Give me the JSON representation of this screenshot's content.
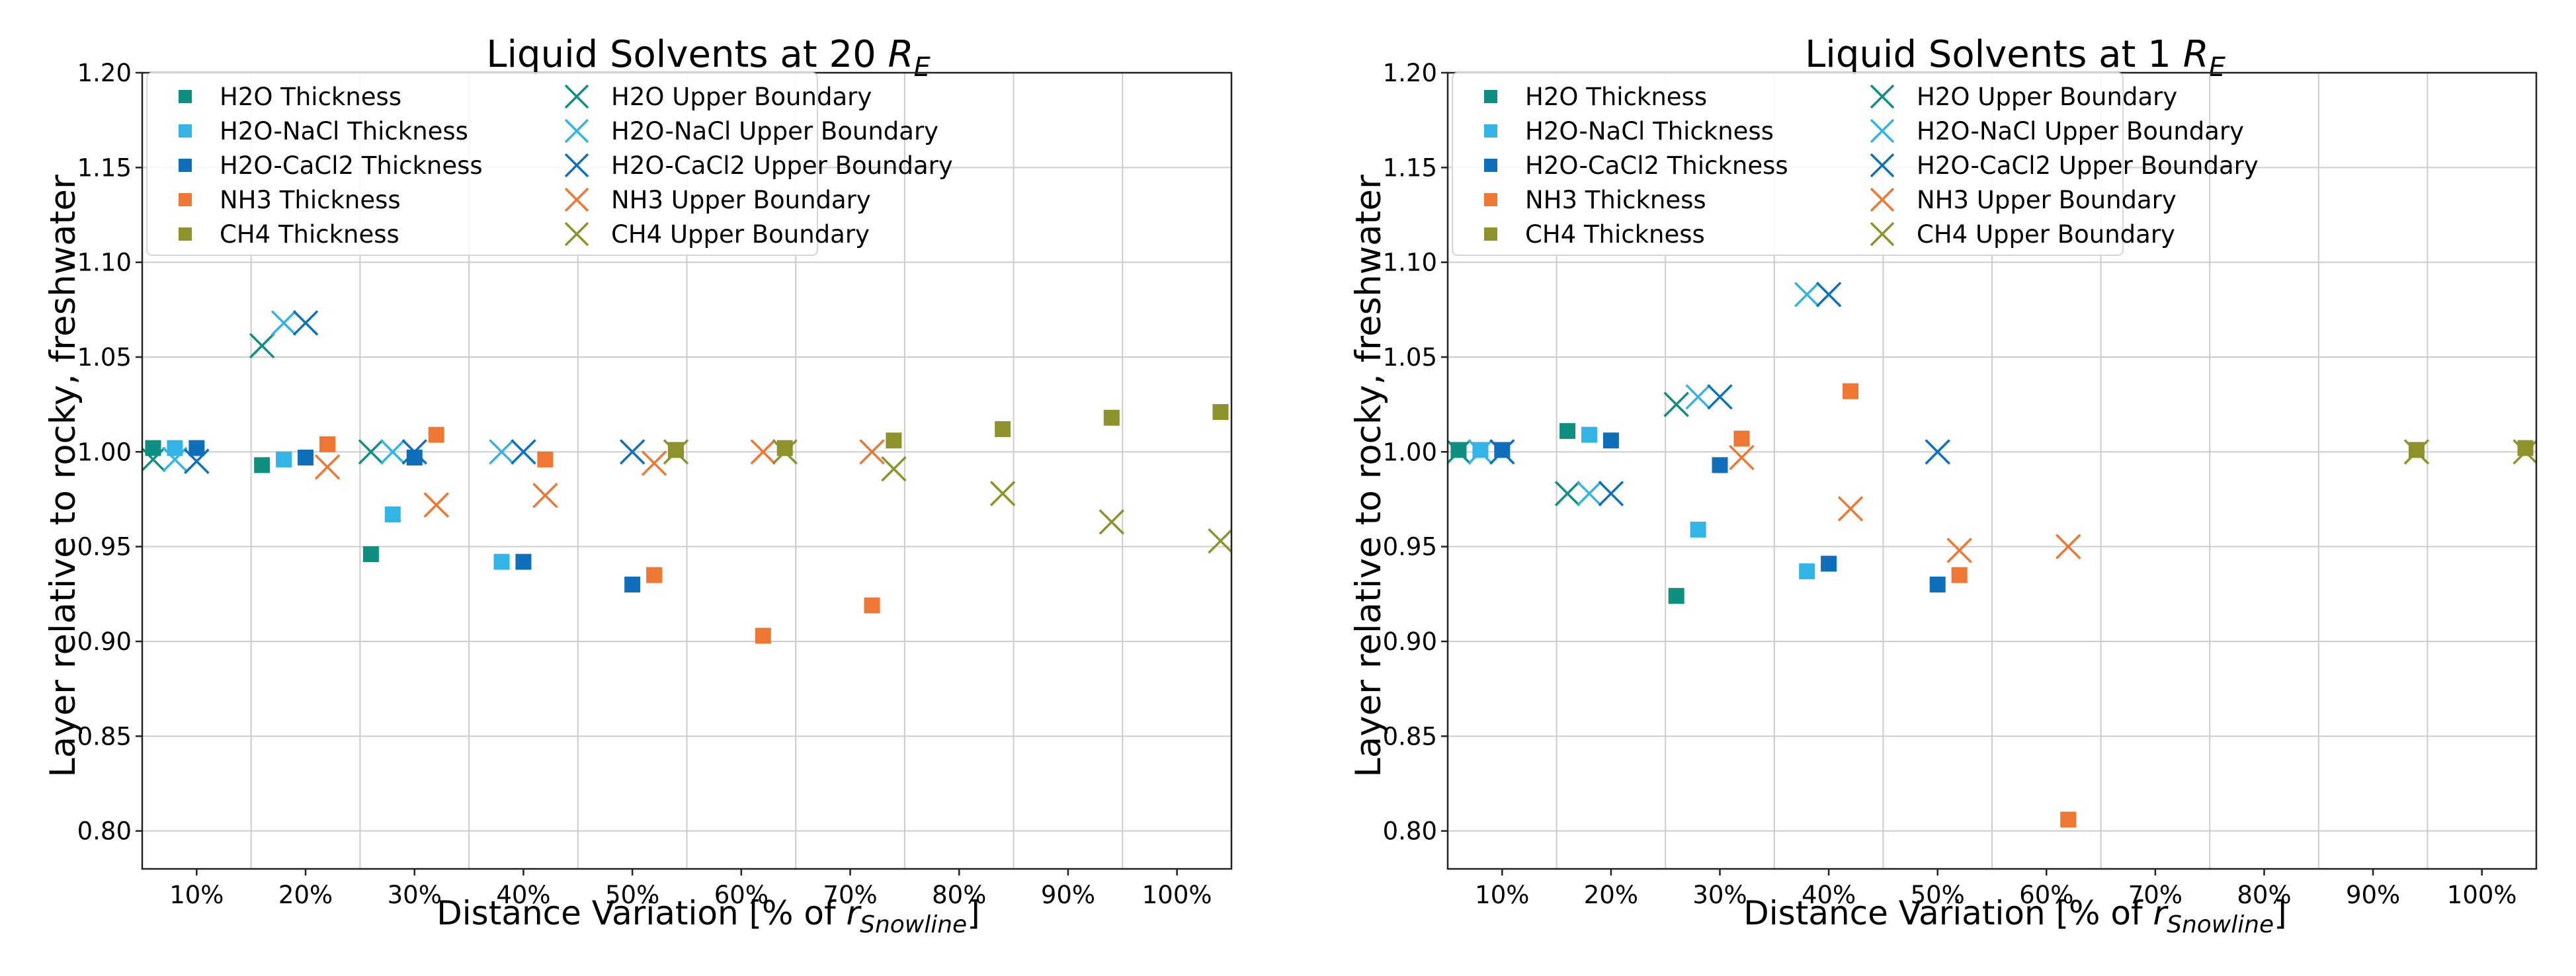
{
  "colors": {
    "H2O": "#0e8f80",
    "H2O-NaCl": "#32b4e6",
    "H2O-CaCl2": "#0f6fba",
    "NH3": "#ee7733",
    "CH4": "#8d922a",
    "grid": "#cccccc",
    "axis": "#222222"
  },
  "chart_data": [
    {
      "type": "scatter",
      "title_main": "Liquid Solvents at 20 ",
      "title_var": "R",
      "title_sub": "E",
      "xlabel_main": "Distance Variation [% of ",
      "xlabel_var": "r",
      "xlabel_sub": "Snowline",
      "xlabel_end": "]",
      "ylabel": "Layer relative to rocky, freshwater",
      "xlim": [
        5,
        105
      ],
      "ylim": [
        0.78,
        1.2
      ],
      "xtick_values": [
        10,
        20,
        30,
        40,
        50,
        60,
        70,
        80,
        90,
        100
      ],
      "xtick_labels": [
        "10%",
        "20%",
        "30%",
        "40%",
        "50%",
        "60%",
        "70%",
        "80%",
        "90%",
        "100%"
      ],
      "xgrid": [
        15,
        25,
        35,
        45,
        55,
        65,
        75,
        85,
        95
      ],
      "ytick_values": [
        0.8,
        0.85,
        0.9,
        0.95,
        1.0,
        1.05,
        1.1,
        1.15,
        1.2
      ],
      "ytick_labels": [
        "0.80",
        "0.85",
        "0.90",
        "0.95",
        "1.00",
        "1.05",
        "1.10",
        "1.15",
        "1.20"
      ],
      "legend_position": "top-left",
      "legend": [
        [
          "H2O Thickness",
          "H2O-NaCl Thickness",
          "H2O-CaCl2 Thickness",
          "NH3 Thickness",
          "CH4 Thickness"
        ],
        [
          "H2O Upper Boundary",
          "H2O-NaCl Upper Boundary",
          "H2O-CaCl2 Upper Boundary",
          "NH3 Upper Boundary",
          "CH4 Upper Boundary"
        ]
      ],
      "series": [
        {
          "name": "H2O Thickness",
          "solvent": "H2O",
          "marker": "square",
          "points": [
            [
              6,
              1.002
            ],
            [
              16,
              0.993
            ],
            [
              26,
              0.946
            ]
          ]
        },
        {
          "name": "H2O-NaCl Thickness",
          "solvent": "H2O-NaCl",
          "marker": "square",
          "points": [
            [
              8,
              1.002
            ],
            [
              18,
              0.996
            ],
            [
              28,
              0.967
            ],
            [
              38,
              0.942
            ]
          ]
        },
        {
          "name": "H2O-CaCl2 Thickness",
          "solvent": "H2O-CaCl2",
          "marker": "square",
          "points": [
            [
              10,
              1.002
            ],
            [
              20,
              0.997
            ],
            [
              30,
              0.997
            ],
            [
              40,
              0.942
            ],
            [
              50,
              0.93
            ]
          ]
        },
        {
          "name": "NH3 Thickness",
          "solvent": "NH3",
          "marker": "square",
          "points": [
            [
              22,
              1.004
            ],
            [
              32,
              1.009
            ],
            [
              42,
              0.996
            ],
            [
              52,
              0.935
            ],
            [
              62,
              0.903
            ],
            [
              72,
              0.919
            ]
          ]
        },
        {
          "name": "CH4 Thickness",
          "solvent": "CH4",
          "marker": "square",
          "points": [
            [
              54,
              1.001
            ],
            [
              64,
              1.002
            ],
            [
              74,
              1.006
            ],
            [
              84,
              1.012
            ],
            [
              94,
              1.018
            ],
            [
              104,
              1.021
            ]
          ]
        },
        {
          "name": "H2O Upper Boundary",
          "solvent": "H2O",
          "marker": "x",
          "points": [
            [
              6,
              0.996
            ],
            [
              16,
              1.056
            ],
            [
              26,
              1.0
            ]
          ]
        },
        {
          "name": "H2O-NaCl Upper Boundary",
          "solvent": "H2O-NaCl",
          "marker": "x",
          "points": [
            [
              8,
              0.996
            ],
            [
              18,
              1.068
            ],
            [
              28,
              1.0
            ],
            [
              38,
              1.0
            ]
          ]
        },
        {
          "name": "H2O-CaCl2 Upper Boundary",
          "solvent": "H2O-CaCl2",
          "marker": "x",
          "points": [
            [
              10,
              0.995
            ],
            [
              20,
              1.068
            ],
            [
              30,
              1.0
            ],
            [
              40,
              1.0
            ],
            [
              50,
              1.0
            ]
          ]
        },
        {
          "name": "NH3 Upper Boundary",
          "solvent": "NH3",
          "marker": "x",
          "points": [
            [
              22,
              0.992
            ],
            [
              32,
              0.972
            ],
            [
              42,
              0.977
            ],
            [
              52,
              0.994
            ],
            [
              62,
              1.0
            ],
            [
              72,
              1.0
            ]
          ]
        },
        {
          "name": "CH4 Upper Boundary",
          "solvent": "CH4",
          "marker": "x",
          "points": [
            [
              54,
              1.0
            ],
            [
              64,
              1.0
            ],
            [
              74,
              0.991
            ],
            [
              84,
              0.978
            ],
            [
              94,
              0.963
            ],
            [
              104,
              0.953
            ]
          ]
        }
      ]
    },
    {
      "type": "scatter",
      "title_main": "Liquid Solvents at 1 ",
      "title_var": "R",
      "title_sub": "E",
      "xlabel_main": "Distance Variation [% of ",
      "xlabel_var": "r",
      "xlabel_sub": "Snowline",
      "xlabel_end": "]",
      "ylabel": "Layer relative to rocky, freshwater",
      "xlim": [
        5,
        105
      ],
      "ylim": [
        0.78,
        1.2
      ],
      "xtick_values": [
        10,
        20,
        30,
        40,
        50,
        60,
        70,
        80,
        90,
        100
      ],
      "xtick_labels": [
        "10%",
        "20%",
        "30%",
        "40%",
        "50%",
        "60%",
        "70%",
        "80%",
        "90%",
        "100%"
      ],
      "xgrid": [
        15,
        25,
        35,
        45,
        55,
        65,
        75,
        85,
        95
      ],
      "ytick_values": [
        0.8,
        0.85,
        0.9,
        0.95,
        1.0,
        1.05,
        1.1,
        1.15,
        1.2
      ],
      "ytick_labels": [
        "0.80",
        "0.85",
        "0.90",
        "0.95",
        "1.00",
        "1.05",
        "1.10",
        "1.15",
        "1.20"
      ],
      "legend_position": "top-left",
      "legend": [
        [
          "H2O Thickness",
          "H2O-NaCl Thickness",
          "H2O-CaCl2 Thickness",
          "NH3 Thickness",
          "CH4 Thickness"
        ],
        [
          "H2O Upper Boundary",
          "H2O-NaCl Upper Boundary",
          "H2O-CaCl2 Upper Boundary",
          "NH3 Upper Boundary",
          "CH4 Upper Boundary"
        ]
      ],
      "series": [
        {
          "name": "H2O Thickness",
          "solvent": "H2O",
          "marker": "square",
          "points": [
            [
              6,
              1.001
            ],
            [
              16,
              1.011
            ],
            [
              26,
              0.924
            ]
          ]
        },
        {
          "name": "H2O-NaCl Thickness",
          "solvent": "H2O-NaCl",
          "marker": "square",
          "points": [
            [
              8,
              1.001
            ],
            [
              18,
              1.009
            ],
            [
              28,
              0.959
            ],
            [
              38,
              0.937
            ]
          ]
        },
        {
          "name": "H2O-CaCl2 Thickness",
          "solvent": "H2O-CaCl2",
          "marker": "square",
          "points": [
            [
              10,
              1.001
            ],
            [
              20,
              1.006
            ],
            [
              30,
              0.993
            ],
            [
              40,
              0.941
            ],
            [
              50,
              0.93
            ]
          ]
        },
        {
          "name": "NH3 Thickness",
          "solvent": "NH3",
          "marker": "square",
          "points": [
            [
              32,
              1.007
            ],
            [
              42,
              1.032
            ],
            [
              52,
              0.935
            ],
            [
              62,
              0.806
            ]
          ]
        },
        {
          "name": "CH4 Thickness",
          "solvent": "CH4",
          "marker": "square",
          "points": [
            [
              94,
              1.001
            ],
            [
              104,
              1.002
            ]
          ]
        },
        {
          "name": "H2O Upper Boundary",
          "solvent": "H2O",
          "marker": "x",
          "points": [
            [
              6,
              1.0
            ],
            [
              16,
              0.978
            ],
            [
              26,
              1.025
            ]
          ]
        },
        {
          "name": "H2O-NaCl Upper Boundary",
          "solvent": "H2O-NaCl",
          "marker": "x",
          "points": [
            [
              8,
              1.0
            ],
            [
              18,
              0.978
            ],
            [
              28,
              1.029
            ],
            [
              38,
              1.083
            ]
          ]
        },
        {
          "name": "H2O-CaCl2 Upper Boundary",
          "solvent": "H2O-CaCl2",
          "marker": "x",
          "points": [
            [
              10,
              1.0
            ],
            [
              20,
              0.978
            ],
            [
              30,
              1.029
            ],
            [
              40,
              1.083
            ],
            [
              50,
              1.0
            ]
          ]
        },
        {
          "name": "NH3 Upper Boundary",
          "solvent": "NH3",
          "marker": "x",
          "points": [
            [
              32,
              0.997
            ],
            [
              42,
              0.97
            ],
            [
              52,
              0.948
            ],
            [
              62,
              0.95
            ]
          ]
        },
        {
          "name": "CH4 Upper Boundary",
          "solvent": "CH4",
          "marker": "x",
          "points": [
            [
              94,
              1.0
            ],
            [
              104,
              1.0
            ]
          ]
        }
      ]
    }
  ]
}
